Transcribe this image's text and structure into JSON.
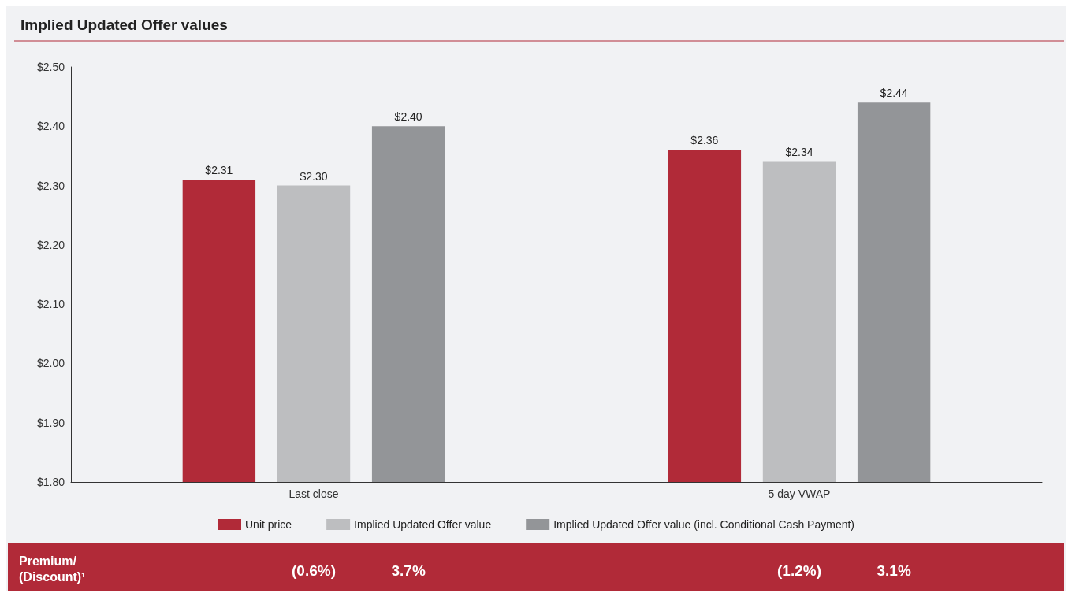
{
  "chart_data": {
    "type": "bar",
    "title": "Implied Updated Offer values",
    "categories": [
      "Last close",
      "5 day VWAP"
    ],
    "series": [
      {
        "name": "Unit price",
        "color": "#b12a38",
        "values": [
          2.31,
          2.36
        ],
        "value_labels": [
          "$2.31",
          "$2.36"
        ]
      },
      {
        "name": "Implied Updated Offer value",
        "color": "#bdbec0",
        "values": [
          2.3,
          2.34
        ],
        "value_labels": [
          "$2.30",
          "$2.34"
        ]
      },
      {
        "name": "Implied Updated Offer value (incl. Conditional Cash Payment)",
        "color": "#939598",
        "values": [
          2.4,
          2.44
        ],
        "value_labels": [
          "$2.40",
          "$2.44"
        ]
      }
    ],
    "ylim": [
      1.8,
      2.5
    ],
    "yticks": [
      {
        "value": 1.8,
        "label": "$1.80"
      },
      {
        "value": 1.9,
        "label": "$1.90"
      },
      {
        "value": 2.0,
        "label": "$2.00"
      },
      {
        "value": 2.1,
        "label": "$2.10"
      },
      {
        "value": 2.2,
        "label": "$2.20"
      },
      {
        "value": 2.3,
        "label": "$2.30"
      },
      {
        "value": 2.4,
        "label": "$2.40"
      },
      {
        "value": 2.5,
        "label": "$2.50"
      }
    ],
    "grid": false,
    "legend": "bottom",
    "annotations": [
      "Premium/\n(Discount)¹",
      "(0.6%)",
      "3.7%",
      "(1.2%)",
      "3.1%"
    ]
  }
}
